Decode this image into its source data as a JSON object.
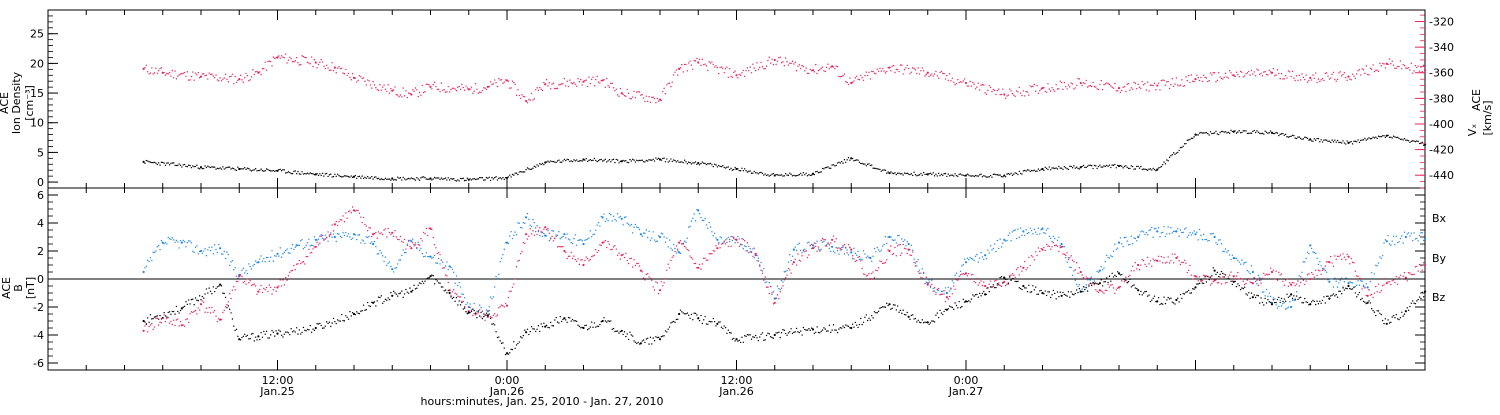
{
  "colors": {
    "black": "#000000",
    "pink": "#e8245c",
    "blue": "#1e88e5"
  },
  "chart_data": [
    {
      "type": "scatter",
      "panel": "top",
      "ylabel_left": [
        "ACE",
        "Ion Density",
        "[cm⁻³]"
      ],
      "ylabel_right": [
        "Vₓ",
        "ACE",
        "[km/s]"
      ],
      "ylim_left": [
        -1,
        29
      ],
      "yticks_left": [
        0,
        5,
        10,
        15,
        20,
        25
      ],
      "ylim_right": [
        -450,
        -311
      ],
      "yticks_right": [
        -320,
        -340,
        -360,
        -380,
        -400,
        -420,
        -440
      ],
      "series": [
        {
          "color": "black",
          "axis": "left",
          "x": [
            5,
            8,
            10,
            12,
            14,
            16,
            18,
            20,
            22,
            24,
            26,
            28,
            30,
            32,
            34,
            36,
            38,
            40,
            42,
            44,
            46,
            48,
            50,
            52,
            54,
            56,
            58,
            60,
            62,
            64,
            66,
            68,
            70,
            72
          ],
          "y": [
            3.4,
            2.5,
            2.2,
            1.9,
            1.3,
            0.9,
            0.6,
            0.6,
            0.4,
            0.7,
            3.3,
            3.8,
            3.5,
            3.8,
            3.2,
            2.2,
            1.1,
            1.4,
            4.0,
            1.5,
            1.3,
            1.1,
            1.1,
            2.2,
            2.5,
            2.7,
            2.1,
            8.0,
            8.5,
            8.3,
            7.2,
            6.6,
            7.8,
            6.3
          ]
        },
        {
          "color": "pink",
          "axis": "right",
          "x": [
            5,
            6,
            8,
            10,
            11,
            12,
            14,
            15,
            16,
            18,
            19,
            20,
            22,
            23,
            24,
            25,
            26,
            28,
            29,
            30,
            32,
            33,
            34,
            36,
            38,
            40,
            41,
            42,
            44,
            46,
            48,
            50,
            52,
            54,
            56,
            58,
            60,
            62,
            64,
            66,
            68,
            70,
            72
          ],
          "y": [
            -357,
            -360,
            -363,
            -365,
            -360,
            -348,
            -352,
            -356,
            -364,
            -374,
            -377,
            -371,
            -373,
            -371,
            -366,
            -382,
            -369,
            -367,
            -366,
            -376,
            -381,
            -357,
            -352,
            -362,
            -350,
            -358,
            -355,
            -368,
            -356,
            -360,
            -368,
            -377,
            -372,
            -368,
            -372,
            -370,
            -365,
            -362,
            -360,
            -364,
            -363,
            -353,
            -358
          ]
        }
      ]
    },
    {
      "type": "scatter",
      "panel": "bottom",
      "ylabel_left": [
        "ACE",
        "B",
        "[nT]"
      ],
      "ylim": [
        -6.5,
        6.5
      ],
      "yticks": [
        -6,
        -4,
        -2,
        0,
        2,
        4,
        6
      ],
      "zero_line": true,
      "legend": [
        "Bx",
        "By",
        "Bz"
      ],
      "legend_placement": "right",
      "series": [
        {
          "name": "Bx",
          "color": "black",
          "x": [
            5,
            7,
            9,
            10,
            11,
            12,
            14,
            16,
            17,
            18,
            19,
            20,
            21,
            22,
            23,
            24,
            25,
            26,
            27,
            28,
            29,
            30,
            31,
            32,
            33,
            34,
            35,
            36,
            38,
            40,
            42,
            44,
            45,
            46,
            47,
            48,
            49,
            50,
            51,
            52,
            53,
            54,
            55,
            56,
            57,
            58,
            59,
            60,
            61,
            62,
            63,
            64,
            65,
            66,
            67,
            68,
            69,
            70,
            71,
            72
          ],
          "y": [
            -3.0,
            -2.1,
            -0.4,
            -4.3,
            -4.1,
            -3.9,
            -3.5,
            -2.5,
            -1.7,
            -1.2,
            -0.9,
            0.2,
            -1.0,
            -2.4,
            -2.6,
            -5.3,
            -3.8,
            -3.4,
            -2.8,
            -3.5,
            -3.0,
            -3.7,
            -4.6,
            -4.3,
            -2.5,
            -2.8,
            -3.2,
            -4.3,
            -4.0,
            -3.6,
            -3.5,
            -1.8,
            -2.7,
            -3.1,
            -2.2,
            -1.6,
            -1.1,
            0.1,
            -0.5,
            -1.0,
            -1.2,
            -0.9,
            -0.3,
            0.4,
            -0.8,
            -1.6,
            -1.5,
            -0.6,
            0.6,
            -0.2,
            -1.3,
            -1.8,
            -1.1,
            -1.8,
            -1.4,
            -0.5,
            -1.7,
            -3.2,
            -2.3,
            -0.9
          ]
        },
        {
          "name": "By",
          "color": "blue",
          "x": [
            5,
            6,
            7,
            8,
            9,
            10,
            11,
            12,
            13,
            14,
            15,
            16,
            17,
            18,
            19,
            20,
            21,
            22,
            23,
            24,
            25,
            26,
            27,
            28,
            29,
            30,
            31,
            32,
            33,
            34,
            35,
            36,
            37,
            38,
            39,
            40,
            41,
            42,
            43,
            44,
            45,
            46,
            47,
            48,
            49,
            50,
            51,
            52,
            53,
            54,
            55,
            56,
            57,
            58,
            59,
            60,
            61,
            62,
            63,
            64,
            65,
            66,
            67,
            68,
            69,
            70,
            71,
            72
          ],
          "y": [
            0.5,
            2.6,
            2.6,
            2.0,
            2.2,
            0.3,
            1.2,
            1.8,
            2.4,
            2.8,
            3.0,
            3.2,
            2.5,
            0.7,
            2.7,
            1.6,
            0.9,
            -2.0,
            -2.3,
            2.6,
            4.4,
            3.1,
            3.2,
            2.5,
            4.4,
            4.3,
            3.2,
            3.0,
            1.9,
            4.9,
            2.8,
            2.8,
            1.7,
            -1.4,
            2.1,
            2.4,
            2.3,
            1.9,
            1.5,
            3.0,
            2.5,
            -0.3,
            -1.0,
            1.2,
            1.7,
            2.8,
            3.4,
            3.6,
            2.5,
            -0.9,
            0.6,
            2.6,
            3.0,
            3.4,
            3.4,
            3.2,
            3.0,
            1.5,
            0.5,
            -1.7,
            -2.0,
            2.4,
            -0.2,
            -0.3,
            -0.6,
            2.7,
            3.0,
            2.9
          ]
        },
        {
          "name": "Bz",
          "color": "pink",
          "x": [
            5,
            6,
            7,
            8,
            9,
            10,
            11,
            12,
            14,
            15,
            16,
            17,
            18,
            19,
            20,
            21,
            22,
            23,
            24,
            25,
            26,
            27,
            28,
            29,
            30,
            31,
            32,
            33,
            34,
            35,
            36,
            37,
            38,
            39,
            40,
            41,
            42,
            43,
            44,
            45,
            46,
            47,
            48,
            49,
            50,
            51,
            52,
            53,
            54,
            55,
            56,
            57,
            58,
            59,
            60,
            61,
            62,
            63,
            64,
            65,
            66,
            67,
            68,
            69,
            70,
            71,
            72
          ],
          "y": [
            -3.7,
            -2.8,
            -3.3,
            -1.8,
            -2.9,
            0.2,
            -0.9,
            -0.6,
            2.3,
            3.9,
            4.9,
            3.2,
            3.3,
            2.2,
            3.6,
            -0.8,
            -2.3,
            -2.7,
            -1.9,
            3.2,
            3.7,
            2.0,
            1.0,
            2.6,
            1.7,
            0.6,
            -0.8,
            2.6,
            0.8,
            2.2,
            2.8,
            1.8,
            -1.7,
            1.2,
            2.2,
            2.8,
            2.1,
            0.0,
            2.0,
            2.1,
            -0.4,
            -1.3,
            0.4,
            -0.5,
            -0.2,
            0.8,
            2.1,
            2.3,
            0.5,
            -0.8,
            -0.6,
            1.0,
            1.3,
            1.5,
            0.2,
            -0.1,
            0.2,
            -0.3,
            0.5,
            -0.4,
            0.0,
            1.2,
            1.6,
            -1.2,
            -0.3,
            0.1,
            1.0
          ]
        }
      ]
    }
  ],
  "time_axis": {
    "xlim": [
      0,
      72
    ],
    "label": "hours:minutes, Jan. 25, 2010 - Jan. 27, 2010",
    "major_labels": [
      {
        "x": 12,
        "time": "12:00",
        "date": "Jan.25"
      },
      {
        "x": 24,
        "time": "0:00",
        "date": "Jan.26"
      },
      {
        "x": 36,
        "time": "12:00",
        "date": "Jan.26"
      },
      {
        "x": 48,
        "time": "0:00",
        "date": "Jan.27"
      }
    ]
  }
}
